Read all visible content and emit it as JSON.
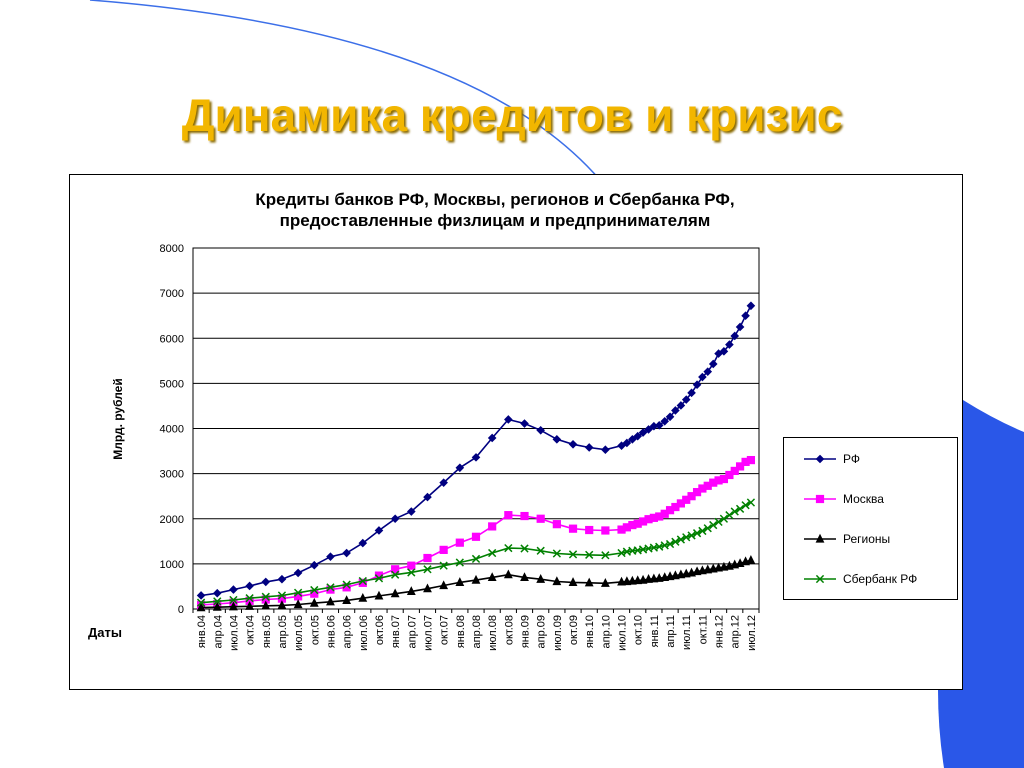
{
  "slide": {
    "title": "Динамика кредитов и кризис",
    "colors": {
      "title": "#f2b600",
      "accent_blue": "#2a57e8"
    }
  },
  "chart_data": {
    "type": "line",
    "title": "Кредиты банков РФ, Москвы, регионов и  Сбербанка РФ,",
    "subtitle": "предоставленные физлицам и предпринимателям",
    "ylabel": "Млрд. рублей",
    "xlabel": "Даты",
    "ylim": [
      0,
      8000
    ],
    "yticks": [
      0,
      1000,
      2000,
      3000,
      4000,
      5000,
      6000,
      7000,
      8000
    ],
    "grid": true,
    "legend_position": "right",
    "tick_labels": [
      "янв.04",
      "апр.04",
      "июл.04",
      "окт.04",
      "янв.05",
      "апр.05",
      "июл.05",
      "окт.05",
      "янв.06",
      "апр.06",
      "июл.06",
      "окт.06",
      "янв.07",
      "апр.07",
      "июл.07",
      "окт.07",
      "янв.08",
      "апр.08",
      "июл.08",
      "окт.08",
      "янв.09",
      "апр.09",
      "июл.09",
      "окт.09",
      "янв.10",
      "апр.10",
      "июл.10",
      "окт.10",
      "янв.11",
      "апр.11",
      "июл.11",
      "окт.11",
      "янв.12",
      "апр.12",
      "июл.12"
    ],
    "series": [
      {
        "name": "РФ",
        "color": "#000080",
        "marker": "diamond",
        "points": [
          [
            0,
            300
          ],
          [
            1,
            350
          ],
          [
            2,
            430
          ],
          [
            3,
            510
          ],
          [
            4,
            600
          ],
          [
            5,
            660
          ],
          [
            6,
            800
          ],
          [
            7,
            970
          ],
          [
            8,
            1160
          ],
          [
            9,
            1240
          ],
          [
            10,
            1460
          ],
          [
            11,
            1740
          ],
          [
            12,
            2000
          ],
          [
            13,
            2160
          ],
          [
            14,
            2480
          ],
          [
            15,
            2800
          ],
          [
            16,
            3130
          ],
          [
            17,
            3360
          ],
          [
            18,
            3790
          ],
          [
            19,
            4200
          ],
          [
            20,
            4110
          ],
          [
            21,
            3960
          ],
          [
            22,
            3760
          ],
          [
            23,
            3650
          ],
          [
            24,
            3580
          ],
          [
            25,
            3530
          ],
          [
            26,
            3620
          ],
          [
            26.33,
            3680
          ],
          [
            26.67,
            3760
          ],
          [
            27,
            3830
          ],
          [
            27.33,
            3910
          ],
          [
            27.67,
            3980
          ],
          [
            28,
            4050
          ],
          [
            28.33,
            4070
          ],
          [
            28.67,
            4160
          ],
          [
            29,
            4260
          ],
          [
            29.33,
            4400
          ],
          [
            29.67,
            4510
          ],
          [
            30,
            4640
          ],
          [
            30.33,
            4790
          ],
          [
            30.67,
            4970
          ],
          [
            31,
            5140
          ],
          [
            31.33,
            5260
          ],
          [
            31.67,
            5430
          ],
          [
            32,
            5660
          ],
          [
            32.33,
            5710
          ],
          [
            32.67,
            5860
          ],
          [
            33,
            6050
          ],
          [
            33.33,
            6250
          ],
          [
            33.67,
            6500
          ],
          [
            34,
            6720
          ]
        ]
      },
      {
        "name": "Москва",
        "color": "#ff00ff",
        "marker": "square",
        "points": [
          [
            0,
            90
          ],
          [
            1,
            110
          ],
          [
            2,
            140
          ],
          [
            3,
            180
          ],
          [
            4,
            210
          ],
          [
            5,
            230
          ],
          [
            6,
            280
          ],
          [
            7,
            340
          ],
          [
            8,
            430
          ],
          [
            9,
            480
          ],
          [
            10,
            580
          ],
          [
            11,
            740
          ],
          [
            12,
            880
          ],
          [
            13,
            960
          ],
          [
            14,
            1130
          ],
          [
            15,
            1310
          ],
          [
            16,
            1470
          ],
          [
            17,
            1600
          ],
          [
            18,
            1830
          ],
          [
            19,
            2080
          ],
          [
            20,
            2060
          ],
          [
            21,
            2000
          ],
          [
            22,
            1880
          ],
          [
            23,
            1780
          ],
          [
            24,
            1750
          ],
          [
            25,
            1740
          ],
          [
            26,
            1760
          ],
          [
            26.33,
            1810
          ],
          [
            26.67,
            1860
          ],
          [
            27,
            1890
          ],
          [
            27.33,
            1940
          ],
          [
            27.67,
            1990
          ],
          [
            28,
            2020
          ],
          [
            28.33,
            2050
          ],
          [
            28.67,
            2110
          ],
          [
            29,
            2190
          ],
          [
            29.33,
            2260
          ],
          [
            29.67,
            2340
          ],
          [
            30,
            2420
          ],
          [
            30.33,
            2500
          ],
          [
            30.67,
            2590
          ],
          [
            31,
            2670
          ],
          [
            31.33,
            2730
          ],
          [
            31.67,
            2800
          ],
          [
            32,
            2850
          ],
          [
            32.33,
            2880
          ],
          [
            32.67,
            2970
          ],
          [
            33,
            3060
          ],
          [
            33.33,
            3160
          ],
          [
            33.67,
            3260
          ],
          [
            34,
            3300
          ]
        ]
      },
      {
        "name": "Регионы",
        "color": "#000000",
        "marker": "triangle",
        "points": [
          [
            0,
            30
          ],
          [
            1,
            40
          ],
          [
            2,
            50
          ],
          [
            3,
            60
          ],
          [
            4,
            70
          ],
          [
            5,
            80
          ],
          [
            6,
            100
          ],
          [
            7,
            130
          ],
          [
            8,
            160
          ],
          [
            9,
            190
          ],
          [
            10,
            240
          ],
          [
            11,
            290
          ],
          [
            12,
            340
          ],
          [
            13,
            390
          ],
          [
            14,
            450
          ],
          [
            15,
            520
          ],
          [
            16,
            590
          ],
          [
            17,
            640
          ],
          [
            18,
            700
          ],
          [
            19,
            760
          ],
          [
            20,
            700
          ],
          [
            21,
            660
          ],
          [
            22,
            610
          ],
          [
            23,
            590
          ],
          [
            24,
            580
          ],
          [
            25,
            570
          ],
          [
            26,
            600
          ],
          [
            26.33,
            610
          ],
          [
            26.67,
            620
          ],
          [
            27,
            630
          ],
          [
            27.33,
            640
          ],
          [
            27.67,
            660
          ],
          [
            28,
            670
          ],
          [
            28.33,
            680
          ],
          [
            28.67,
            700
          ],
          [
            29,
            720
          ],
          [
            29.33,
            740
          ],
          [
            29.67,
            760
          ],
          [
            30,
            780
          ],
          [
            30.33,
            800
          ],
          [
            30.67,
            830
          ],
          [
            31,
            850
          ],
          [
            31.33,
            870
          ],
          [
            31.67,
            890
          ],
          [
            32,
            910
          ],
          [
            32.33,
            930
          ],
          [
            32.67,
            950
          ],
          [
            33,
            980
          ],
          [
            33.33,
            1010
          ],
          [
            33.67,
            1050
          ],
          [
            34,
            1080
          ]
        ]
      },
      {
        "name": "Сбербанк РФ",
        "color": "#008000",
        "marker": "x",
        "points": [
          [
            0,
            140
          ],
          [
            1,
            170
          ],
          [
            2,
            200
          ],
          [
            3,
            240
          ],
          [
            4,
            270
          ],
          [
            5,
            300
          ],
          [
            6,
            360
          ],
          [
            7,
            420
          ],
          [
            8,
            480
          ],
          [
            9,
            540
          ],
          [
            10,
            620
          ],
          [
            11,
            680
          ],
          [
            12,
            760
          ],
          [
            13,
            810
          ],
          [
            14,
            880
          ],
          [
            15,
            960
          ],
          [
            16,
            1030
          ],
          [
            17,
            1110
          ],
          [
            18,
            1240
          ],
          [
            19,
            1350
          ],
          [
            20,
            1340
          ],
          [
            21,
            1290
          ],
          [
            22,
            1230
          ],
          [
            23,
            1210
          ],
          [
            24,
            1200
          ],
          [
            25,
            1190
          ],
          [
            26,
            1240
          ],
          [
            26.33,
            1270
          ],
          [
            26.67,
            1290
          ],
          [
            27,
            1300
          ],
          [
            27.33,
            1320
          ],
          [
            27.67,
            1340
          ],
          [
            28,
            1360
          ],
          [
            28.33,
            1380
          ],
          [
            28.67,
            1410
          ],
          [
            29,
            1440
          ],
          [
            29.33,
            1490
          ],
          [
            29.67,
            1540
          ],
          [
            30,
            1590
          ],
          [
            30.33,
            1630
          ],
          [
            30.67,
            1680
          ],
          [
            31,
            1730
          ],
          [
            31.33,
            1790
          ],
          [
            31.67,
            1860
          ],
          [
            32,
            1930
          ],
          [
            32.33,
            2000
          ],
          [
            32.67,
            2080
          ],
          [
            33,
            2160
          ],
          [
            33.33,
            2220
          ],
          [
            33.67,
            2300
          ],
          [
            34,
            2360
          ]
        ]
      }
    ]
  }
}
